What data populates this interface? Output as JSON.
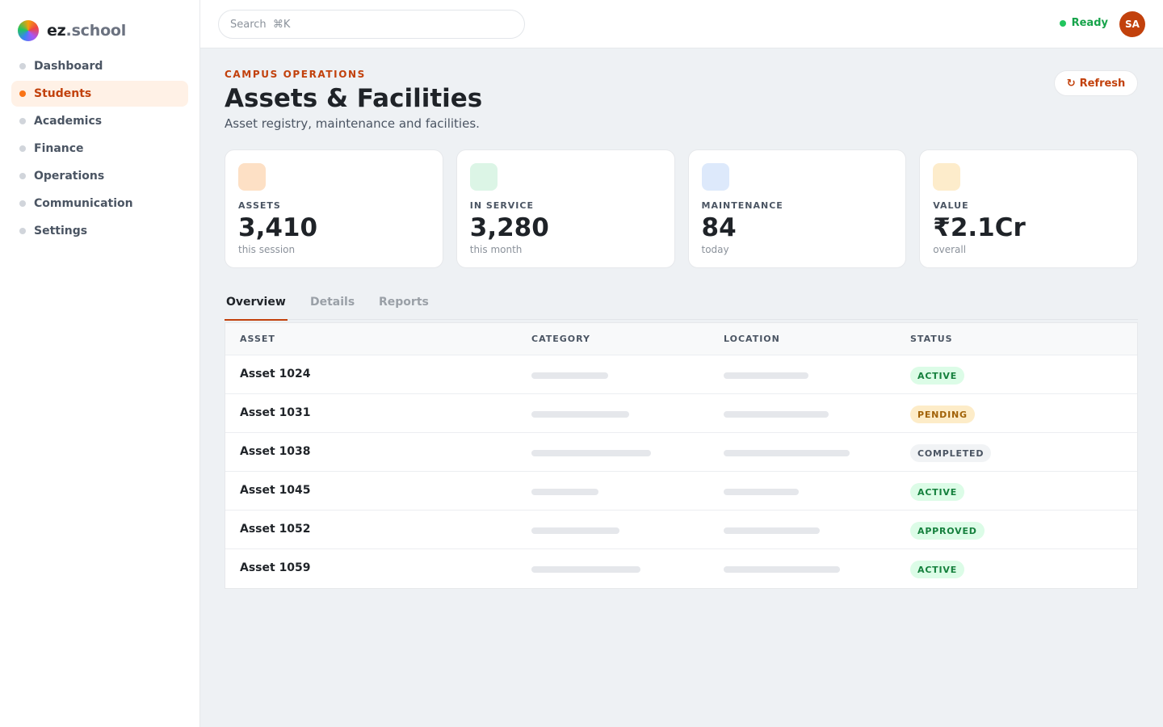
{
  "brand": {
    "name_a": "ez",
    "name_b": ".school"
  },
  "sidebar": {
    "items": [
      {
        "label": "Dashboard",
        "active": false
      },
      {
        "label": "Students",
        "active": true
      },
      {
        "label": "Academics",
        "active": false
      },
      {
        "label": "Finance",
        "active": false
      },
      {
        "label": "Operations",
        "active": false
      },
      {
        "label": "Communication",
        "active": false
      },
      {
        "label": "Settings",
        "active": false
      }
    ]
  },
  "topbar": {
    "search_placeholder": "Search  ⌘K",
    "status_label": "Ready",
    "avatar_initials": "SA"
  },
  "header": {
    "eyebrow": "CAMPUS OPERATIONS",
    "title": "Assets & Facilities",
    "subtitle": "Asset registry, maintenance and facilities.",
    "refresh_label": "Refresh",
    "refresh_icon": "↻"
  },
  "stats": [
    {
      "label": "ASSETS",
      "value": "3,410",
      "note": "this session",
      "icon_color": "#fde0c5"
    },
    {
      "label": "IN SERVICE",
      "value": "3,280",
      "note": "this month",
      "icon_color": "#dcf5e6"
    },
    {
      "label": "MAINTENANCE",
      "value": "84",
      "note": "today",
      "icon_color": "#dde9fb"
    },
    {
      "label": "VALUE",
      "value": "₹2.1Cr",
      "note": "overall",
      "icon_color": "#fdeccb"
    }
  ],
  "tabs": [
    {
      "label": "Overview",
      "active": true
    },
    {
      "label": "Details",
      "active": false
    },
    {
      "label": "Reports",
      "active": false
    }
  ],
  "table": {
    "columns": [
      "ASSET",
      "CATEGORY",
      "LOCATION",
      "STATUS"
    ],
    "rows": [
      {
        "name": "Asset 1024",
        "status": "ACTIVE",
        "status_kind": "active"
      },
      {
        "name": "Asset 1031",
        "status": "PENDING",
        "status_kind": "pending"
      },
      {
        "name": "Asset 1038",
        "status": "COMPLETED",
        "status_kind": "completed"
      },
      {
        "name": "Asset 1045",
        "status": "ACTIVE",
        "status_kind": "active"
      },
      {
        "name": "Asset 1052",
        "status": "APPROVED",
        "status_kind": "approved"
      },
      {
        "name": "Asset 1059",
        "status": "ACTIVE",
        "status_kind": "active"
      }
    ]
  },
  "colors": {
    "accent": "#c2410c",
    "ready": "#16a34a",
    "status_active_bg": "#dcfce7",
    "status_active_fg": "#15803d",
    "status_pending_bg": "#fdecc8",
    "status_pending_fg": "#a16207",
    "status_completed_bg": "#f1f3f5",
    "status_completed_fg": "#4b5563"
  }
}
